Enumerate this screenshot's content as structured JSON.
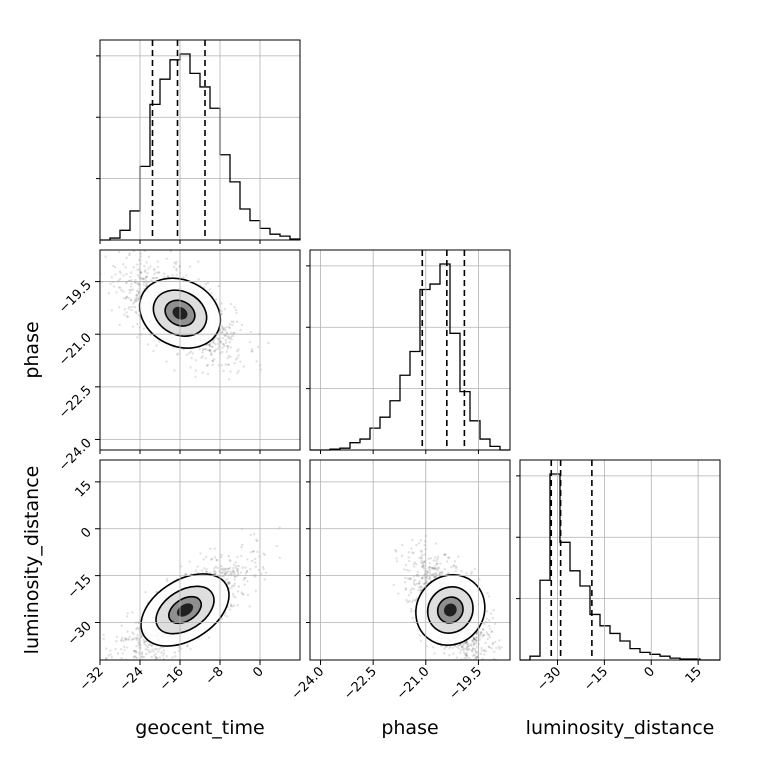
{
  "chart_data": {
    "type": "corner",
    "parameters": [
      "geocent_time",
      "phase",
      "luminosity_distance"
    ],
    "ranges": {
      "geocent_time": [
        -32,
        8
      ],
      "phase": [
        -24.3,
        -18.6
      ],
      "luminosity_distance": [
        -42,
        22
      ]
    },
    "ticks": {
      "geocent_time": [
        -32,
        -24,
        -16,
        -8,
        0
      ],
      "phase": [
        -24.0,
        -22.5,
        -21.0,
        -19.5
      ],
      "luminosity_distance": [
        -30,
        -15,
        0,
        15
      ]
    },
    "tick_labels": {
      "geocent_time": [
        "−32",
        "−24",
        "−16",
        "−8",
        "0"
      ],
      "phase": [
        "−24.0",
        "−22.5",
        "−21.0",
        "−19.5"
      ],
      "luminosity_distance": [
        "−30",
        "−15",
        "0",
        "15"
      ]
    },
    "labels": {
      "x": [
        "geocent_time",
        "phase",
        "luminosity_distance"
      ],
      "y": [
        "",
        "phase",
        "luminosity_distance"
      ]
    },
    "grid": true,
    "quantiles": {
      "geocent_time": [
        -21.5,
        -16.5,
        -11.0
      ],
      "phase": [
        -21.1,
        -20.4,
        -19.9
      ],
      "luminosity_distance": [
        -32,
        -29,
        -19
      ]
    },
    "histograms": {
      "geocent_time": {
        "edges": [
          -32,
          -30,
          -28,
          -26,
          -24,
          -22,
          -20,
          -18,
          -16,
          -14,
          -12,
          -10,
          -8,
          -6,
          -4,
          -2,
          0,
          2,
          4,
          6,
          8
        ],
        "counts": [
          0.0,
          0.01,
          0.05,
          0.15,
          0.38,
          0.7,
          0.83,
          0.93,
          0.96,
          0.86,
          0.79,
          0.68,
          0.44,
          0.3,
          0.16,
          0.1,
          0.06,
          0.03,
          0.02,
          0.005
        ]
      },
      "phase": {
        "edges": [
          -24.3,
          -24.015,
          -23.73,
          -23.445,
          -23.16,
          -22.875,
          -22.59,
          -22.305,
          -22.02,
          -21.735,
          -21.45,
          -21.165,
          -20.88,
          -20.595,
          -20.31,
          -20.025,
          -19.74,
          -19.455,
          -19.17,
          -18.885,
          -18.6
        ],
        "counts": [
          0.0,
          0.0,
          0.005,
          0.01,
          0.04,
          0.06,
          0.12,
          0.18,
          0.27,
          0.41,
          0.54,
          0.88,
          0.91,
          1.02,
          0.64,
          0.32,
          0.16,
          0.06,
          0.02,
          0.0
        ]
      },
      "luminosity_distance": {
        "edges": [
          -42,
          -38.8,
          -35.6,
          -32.4,
          -29.2,
          -26,
          -22.8,
          -19.6,
          -16.4,
          -13.2,
          -10,
          -6.8,
          -3.6,
          -0.4,
          2.8,
          6,
          9.2,
          12.4,
          15.6,
          18.8,
          22
        ],
        "counts": [
          0.0,
          0.02,
          0.42,
          0.98,
          0.62,
          0.47,
          0.39,
          0.24,
          0.18,
          0.14,
          0.1,
          0.06,
          0.04,
          0.03,
          0.02,
          0.01,
          0.005,
          0.005,
          0.0,
          0.0
        ]
      }
    },
    "scatter_shape": {
      "phase_vs_geocent_time": {
        "mean": [
          -16,
          -20.4
        ],
        "std": [
          5.5,
          0.65
        ],
        "corr": -0.6
      },
      "luminosity_distance_vs_geocent_time": {
        "mean": [
          -15,
          -26
        ],
        "std": [
          6,
          8
        ],
        "corr": 0.75
      },
      "luminosity_distance_vs_phase": {
        "mean": [
          -20.3,
          -26
        ],
        "std": [
          0.55,
          8
        ],
        "corr": -0.6
      }
    }
  }
}
